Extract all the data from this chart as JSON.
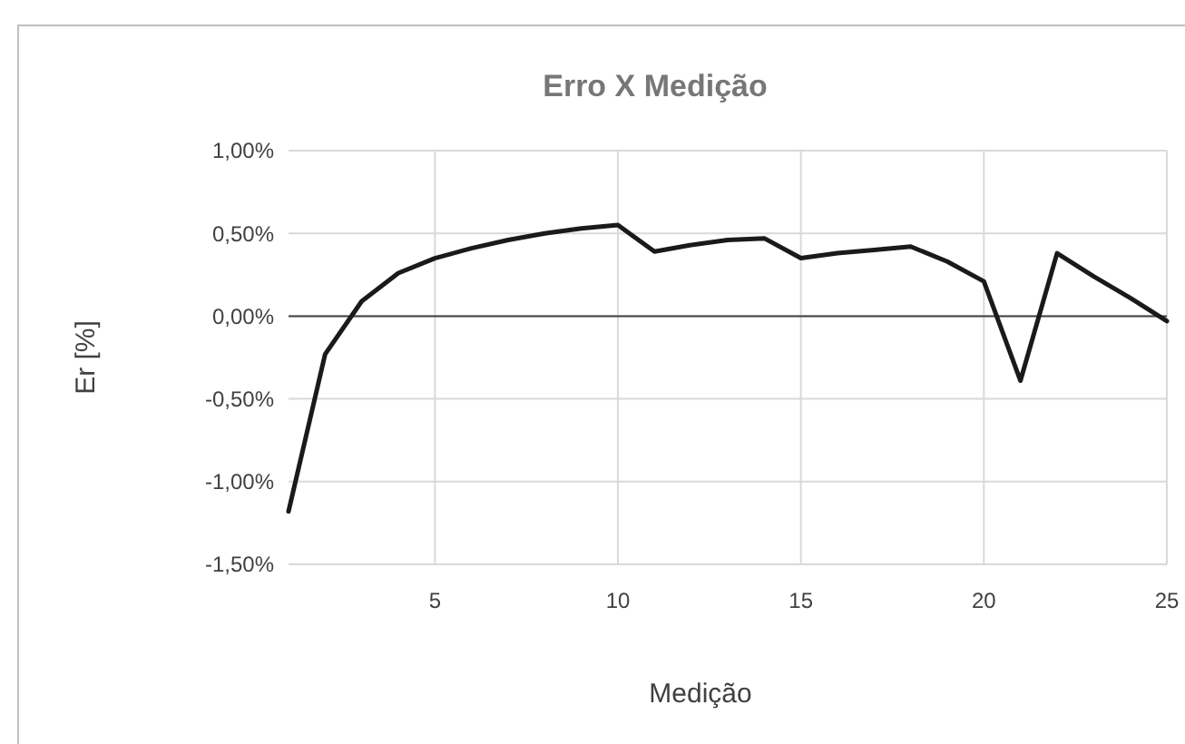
{
  "chart_data": {
    "type": "line",
    "title": "Erro X Medição",
    "xlabel": "Medição",
    "ylabel": "Er [%]",
    "x": [
      1,
      2,
      3,
      4,
      5,
      6,
      7,
      8,
      9,
      10,
      11,
      12,
      13,
      14,
      15,
      16,
      17,
      18,
      19,
      20,
      21,
      22,
      23,
      24,
      25
    ],
    "series": [
      {
        "color": "#1a1a1a",
        "values": [
          -1.18,
          -0.23,
          0.09,
          0.26,
          0.35,
          0.41,
          0.46,
          0.5,
          0.53,
          0.55,
          0.39,
          0.43,
          0.46,
          0.47,
          0.35,
          0.38,
          0.4,
          0.42,
          0.33,
          0.21,
          -0.39,
          0.38,
          0.24,
          0.11,
          -0.03
        ]
      }
    ],
    "xlim": [
      1,
      25
    ],
    "xticks": [
      5,
      10,
      15,
      20,
      25
    ],
    "ylim": [
      -1.5,
      1.0
    ],
    "yticks": [
      {
        "value": -1.5,
        "label": "-1,50%"
      },
      {
        "value": -1.0,
        "label": "-1,00%"
      },
      {
        "value": -0.5,
        "label": "-0,50%"
      },
      {
        "value": 0,
        "label": "0,00%"
      },
      {
        "value": 0.5,
        "label": "0,50%"
      },
      {
        "value": 1.0,
        "label": "1,00%"
      }
    ],
    "grid": true,
    "marker": "none",
    "line_style": "solid"
  }
}
